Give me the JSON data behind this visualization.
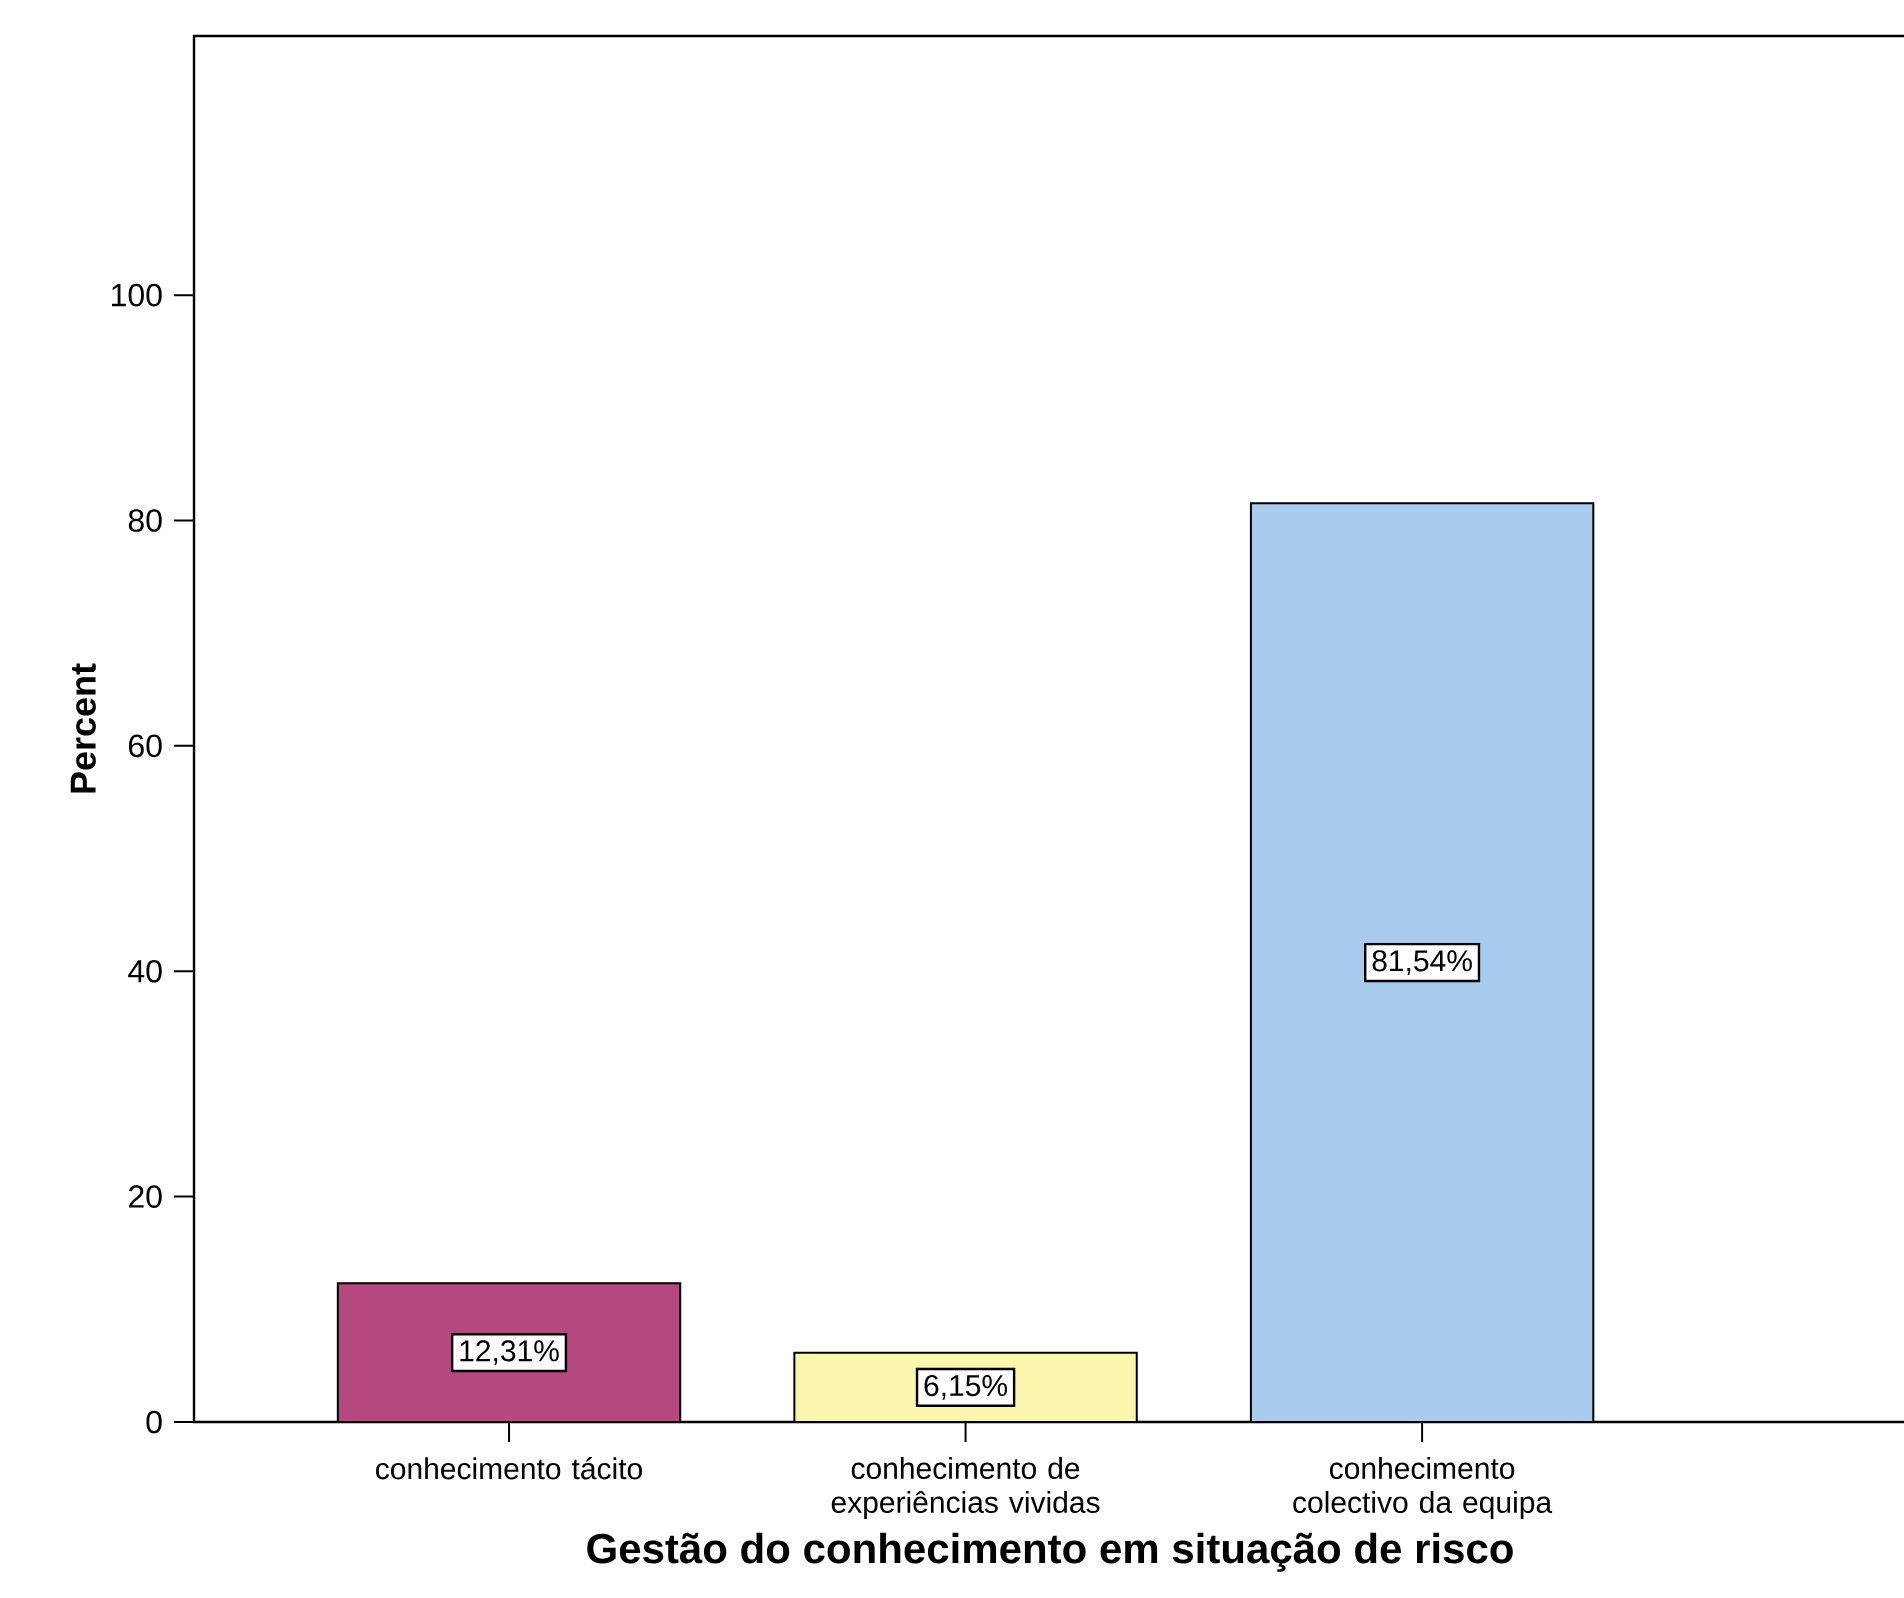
{
  "chart_data": {
    "type": "bar",
    "xlabel": "Gestão do conhecimento em situação de risco",
    "ylabel": "Percent",
    "categories": [
      "conhecimento tácito",
      "conhecimento de experiências vividas",
      "conhecimento colectivo da equipa"
    ],
    "values": [
      12.31,
      6.15,
      81.54
    ],
    "colors": [
      "#b5487f",
      "#fbf6ad",
      "#a9cbee"
    ],
    "value_labels": [
      "12,31%",
      "6,15%",
      "81,54%"
    ],
    "ylim": [
      0,
      123
    ],
    "yticks": [
      0,
      20,
      40,
      60,
      80,
      100
    ]
  }
}
